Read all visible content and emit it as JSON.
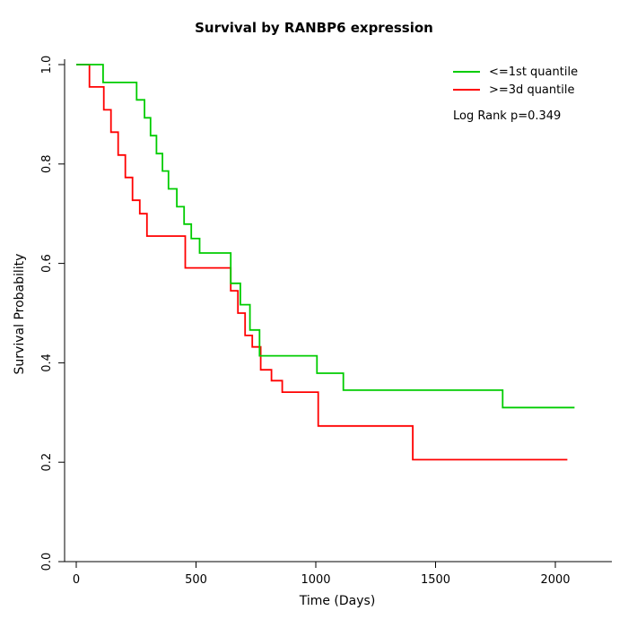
{
  "chart_data": {
    "type": "line",
    "subtype": "kaplan-meier-step",
    "title": "Survival by RANBP6 expression",
    "xlabel": "Time (Days)",
    "ylabel": "Survival Probability",
    "xlim": [
      0,
      2100
    ],
    "ylim": [
      0,
      1
    ],
    "x_ticks": [
      0,
      500,
      1000,
      1500,
      2000
    ],
    "x_tick_labels": [
      "0",
      "500",
      "1000",
      "1500",
      "2000"
    ],
    "y_ticks": [
      0,
      0.2,
      0.4,
      0.6,
      0.8,
      1.0
    ],
    "y_tick_labels": [
      "0.0",
      "0.2",
      "0.4",
      "0.6",
      "0.8",
      "1.0"
    ],
    "grid": "off",
    "legend_position": "top-right",
    "annotation": "Log Rank p=0.349",
    "series": [
      {
        "name": "<=1st quantile",
        "color": "#00CC00",
        "points": [
          [
            0,
            1.0
          ],
          [
            112,
            0.964
          ],
          [
            252,
            0.929
          ],
          [
            285,
            0.893
          ],
          [
            310,
            0.857
          ],
          [
            335,
            0.821
          ],
          [
            360,
            0.786
          ],
          [
            385,
            0.75
          ],
          [
            420,
            0.714
          ],
          [
            450,
            0.679
          ],
          [
            480,
            0.65
          ],
          [
            515,
            0.621
          ],
          [
            645,
            0.56
          ],
          [
            685,
            0.517
          ],
          [
            725,
            0.466
          ],
          [
            765,
            0.414
          ],
          [
            1005,
            0.379
          ],
          [
            1115,
            0.345
          ],
          [
            1780,
            0.31
          ],
          [
            2080,
            0.31
          ]
        ]
      },
      {
        "name": ">=3d quantile",
        "color": "#FF0000",
        "points": [
          [
            0,
            1.0
          ],
          [
            55,
            0.955
          ],
          [
            115,
            0.909
          ],
          [
            145,
            0.864
          ],
          [
            175,
            0.818
          ],
          [
            205,
            0.773
          ],
          [
            235,
            0.727
          ],
          [
            265,
            0.7
          ],
          [
            295,
            0.655
          ],
          [
            455,
            0.591
          ],
          [
            645,
            0.545
          ],
          [
            675,
            0.5
          ],
          [
            705,
            0.455
          ],
          [
            735,
            0.432
          ],
          [
            770,
            0.386
          ],
          [
            815,
            0.364
          ],
          [
            860,
            0.341
          ],
          [
            1010,
            0.273
          ],
          [
            1405,
            0.205
          ],
          [
            2050,
            0.205
          ]
        ]
      }
    ]
  }
}
